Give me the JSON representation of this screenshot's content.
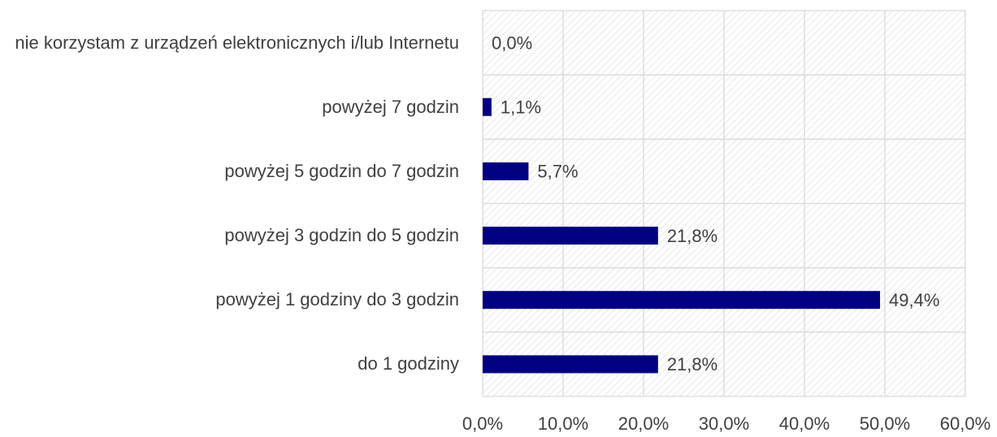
{
  "chart_data": {
    "type": "bar",
    "orientation": "horizontal",
    "categories": [
      "nie korzystam z urządzeń elektronicznych i/lub Internetu",
      "powyżej 7 godzin",
      "powyżej 5 godzin do 7 godzin",
      "powyżej 3 godzin do 5 godzin",
      "powyżej 1 godziny do 3 godzin",
      "do 1 godziny"
    ],
    "values": [
      0,
      1.1,
      5.7,
      21.8,
      49.4,
      21.8
    ],
    "value_labels": [
      "0,0%",
      "1,1%",
      "5,7%",
      "21,8%",
      "49,4%",
      "21,8%"
    ],
    "color": "#000080",
    "xlim": [
      0,
      60
    ],
    "xticks": [
      {
        "value": 0,
        "label": "0,0%"
      },
      {
        "value": 10,
        "label": "10,0%"
      },
      {
        "value": 20,
        "label": "20,0%"
      },
      {
        "value": 30,
        "label": "30,0%"
      },
      {
        "value": 40,
        "label": "40,0%"
      },
      {
        "value": 50,
        "label": "50,0%"
      },
      {
        "value": 60,
        "label": "60,0%"
      }
    ],
    "grid": true
  }
}
